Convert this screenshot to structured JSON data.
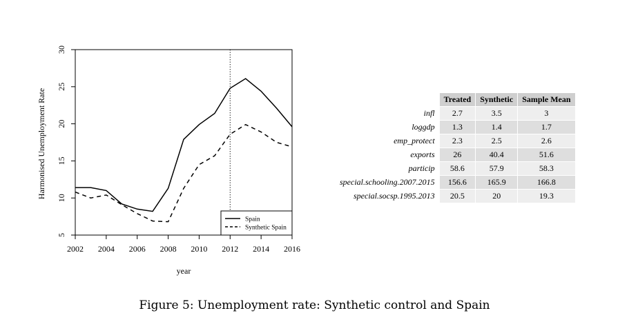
{
  "chart_data": {
    "type": "line",
    "xlabel": "year",
    "ylabel": "Harmonised Unemployment Rate",
    "xlim": [
      2002,
      2016
    ],
    "ylim": [
      5,
      30
    ],
    "x_ticks": [
      2002,
      2004,
      2006,
      2008,
      2010,
      2012,
      2014,
      2016
    ],
    "y_ticks": [
      5,
      10,
      15,
      20,
      25,
      30
    ],
    "vertical_marker": 2012,
    "grid": false,
    "legend_position": "bottom-right",
    "x": [
      2002,
      2003,
      2004,
      2005,
      2006,
      2007,
      2008,
      2009,
      2010,
      2011,
      2012,
      2013,
      2014,
      2015,
      2016
    ],
    "series": [
      {
        "name": "Spain",
        "style": "solid",
        "values": [
          11.4,
          11.4,
          11.0,
          9.2,
          8.5,
          8.2,
          11.3,
          17.9,
          19.9,
          21.4,
          24.8,
          26.1,
          24.4,
          22.1,
          19.6
        ]
      },
      {
        "name": "Synthetic Spain",
        "style": "dashed",
        "values": [
          10.8,
          10.0,
          10.4,
          9.1,
          7.9,
          6.9,
          6.8,
          11.3,
          14.5,
          15.7,
          18.6,
          19.9,
          18.9,
          17.5,
          16.9
        ]
      }
    ]
  },
  "table": {
    "columns": [
      "Treated",
      "Synthetic",
      "Sample Mean"
    ],
    "rows": [
      {
        "label": "infl",
        "values": [
          "2.7",
          "3.5",
          "3"
        ]
      },
      {
        "label": "loggdp",
        "values": [
          "1.3",
          "1.4",
          "1.7"
        ]
      },
      {
        "label": "emp_protect",
        "values": [
          "2.3",
          "2.5",
          "2.6"
        ]
      },
      {
        "label": "exports",
        "values": [
          "26",
          "40.4",
          "51.6"
        ]
      },
      {
        "label": "particip",
        "values": [
          "58.6",
          "57.9",
          "58.3"
        ]
      },
      {
        "label": "special.schooling.2007.2015",
        "values": [
          "156.6",
          "165.9",
          "166.8"
        ]
      },
      {
        "label": "special.socsp.1995.2013",
        "values": [
          "20.5",
          "20",
          "19.3"
        ]
      }
    ]
  },
  "caption": "Figure 5: Unemployment rate: Synthetic control and Spain"
}
